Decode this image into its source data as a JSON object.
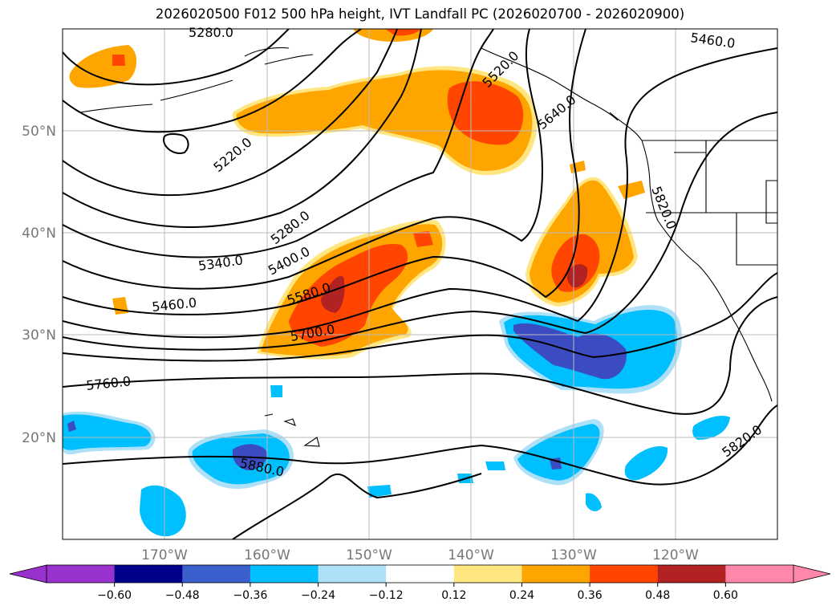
{
  "title": "2026020500 F012 500 hPa height, IVT Landfall PC (2026020700 - 2026020900)",
  "map": {
    "type": "contour_map",
    "lon_range": [
      -180,
      -110
    ],
    "lat_range": [
      10,
      60
    ],
    "gridlines": true,
    "lat_ticks": [
      "20°N",
      "30°N",
      "40°N",
      "50°N"
    ],
    "lon_ticks": [
      "170°W",
      "160°W",
      "150°W",
      "140°W",
      "130°W",
      "120°W"
    ],
    "height_contour_labels": [
      "5280.0",
      "5460.0",
      "5520.0",
      "5640.0",
      "5220.0",
      "5280.0",
      "5340.0",
      "5400.0",
      "5460.0",
      "5580.0",
      "5700.0",
      "5760.0",
      "5820.0",
      "5820.0",
      "5880.0"
    ],
    "fill_colors": {
      "neg_strong": "#3b4cc0",
      "neg_mid": "#00bfff",
      "neg_weak": "#aee0f8",
      "pos_weak": "#ffe680",
      "pos_mid": "#ffa500",
      "pos_strong": "#ff4500",
      "pos_very_strong": "#b22222"
    }
  },
  "colorbar": {
    "ticks": [
      "−0.60",
      "−0.48",
      "−0.36",
      "−0.24",
      "−0.12",
      "0.12",
      "0.24",
      "0.36",
      "0.48",
      "0.60"
    ],
    "colors": [
      "#9932cc",
      "#00008b",
      "#3b5fcc",
      "#00bfff",
      "#aee0f8",
      "#ffffff",
      "#ffe680",
      "#ffa500",
      "#ff4500",
      "#b22222",
      "#ff88aa"
    ]
  }
}
